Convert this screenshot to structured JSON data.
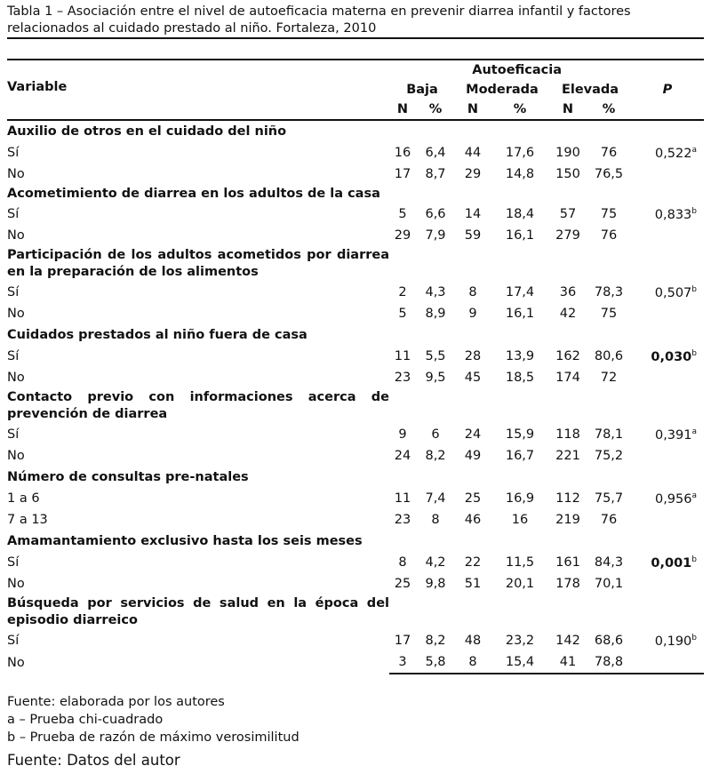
{
  "caption": "Tabla 1 – Asociación entre el nivel de autoeficacia materna en prevenir diarrea infantil y factores relacionados al cuidado prestado al niño. Fortaleza, 2010",
  "header": {
    "variable": "Variable",
    "group": "Autoeficacia",
    "levels": [
      "Baja",
      "Moderada",
      "Elevada"
    ],
    "n": "N",
    "pct": "%",
    "p": "P"
  },
  "groups": [
    {
      "title": "Auxilio de otros en el cuidado del niño",
      "p": "0,522",
      "sup": "a",
      "bold": false,
      "rows": [
        {
          "label": "Sí",
          "v": [
            "16",
            "6,4",
            "44",
            "17,6",
            "190",
            "76"
          ]
        },
        {
          "label": "No",
          "v": [
            "17",
            "8,7",
            "29",
            "14,8",
            "150",
            "76,5"
          ]
        }
      ]
    },
    {
      "title": "Acometimiento de diarrea en los adultos de la casa",
      "p": "0,833",
      "sup": "b",
      "bold": false,
      "rows": [
        {
          "label": "Sí",
          "v": [
            "5",
            "6,6",
            "14",
            "18,4",
            "57",
            "75"
          ]
        },
        {
          "label": "No",
          "v": [
            "29",
            "7,9",
            "59",
            "16,1",
            "279",
            "76"
          ]
        }
      ]
    },
    {
      "title": "Participación de los adultos acometidos por diarrea en la preparación de los alimentos",
      "p": "0,507",
      "sup": "b",
      "bold": false,
      "rows": [
        {
          "label": "Sí",
          "v": [
            "2",
            "4,3",
            "8",
            "17,4",
            "36",
            "78,3"
          ]
        },
        {
          "label": "No",
          "v": [
            "5",
            "8,9",
            "9",
            "16,1",
            "42",
            "75"
          ]
        }
      ]
    },
    {
      "title": "Cuidados prestados al niño fuera de casa",
      "p": "0,030",
      "sup": "b",
      "bold": true,
      "rows": [
        {
          "label": "Sí",
          "v": [
            "11",
            "5,5",
            "28",
            "13,9",
            "162",
            "80,6"
          ]
        },
        {
          "label": "No",
          "v": [
            "23",
            "9,5",
            "45",
            "18,5",
            "174",
            "72"
          ]
        }
      ]
    },
    {
      "title": "Contacto previo con informaciones acerca de prevención de diarrea",
      "p": "0,391",
      "sup": "a",
      "bold": false,
      "rows": [
        {
          "label": "Sí",
          "v": [
            "9",
            "6",
            "24",
            "15,9",
            "118",
            "78,1"
          ]
        },
        {
          "label": "No",
          "v": [
            "24",
            "8,2",
            "49",
            "16,7",
            "221",
            "75,2"
          ]
        }
      ]
    },
    {
      "title": "Número de consultas pre-natales",
      "p": "0,956",
      "sup": "a",
      "bold": false,
      "rows": [
        {
          "label": "1 a 6",
          "v": [
            "11",
            "7,4",
            "25",
            "16,9",
            "112",
            "75,7"
          ]
        },
        {
          "label": "7 a 13",
          "v": [
            "23",
            "8",
            "46",
            "16",
            "219",
            "76"
          ]
        }
      ]
    },
    {
      "title": "Amamantamiento exclusivo hasta los seis meses",
      "p": "0,001",
      "sup": "b",
      "bold": true,
      "rows": [
        {
          "label": "Sí",
          "v": [
            "8",
            "4,2",
            "22",
            "11,5",
            "161",
            "84,3"
          ]
        },
        {
          "label": "No",
          "v": [
            "25",
            "9,8",
            "51",
            "20,1",
            "178",
            "70,1"
          ]
        }
      ]
    },
    {
      "title": "Búsqueda por servicios de salud en la época del episodio diarreico",
      "p": "0,190",
      "sup": "b",
      "bold": false,
      "rows": [
        {
          "label": "Sí",
          "v": [
            "17",
            "8,2",
            "48",
            "23,2",
            "142",
            "68,6"
          ]
        },
        {
          "label": "No",
          "v": [
            "3",
            "5,8",
            "8",
            "15,4",
            "41",
            "78,8"
          ]
        }
      ]
    }
  ],
  "footnotes": [
    "Fuente: elaborada por los autores",
    "a – Prueba chi-cuadrado",
    "b – Prueba de razón de máximo verosimilitud"
  ],
  "source": "Fuente: Datos del autor"
}
